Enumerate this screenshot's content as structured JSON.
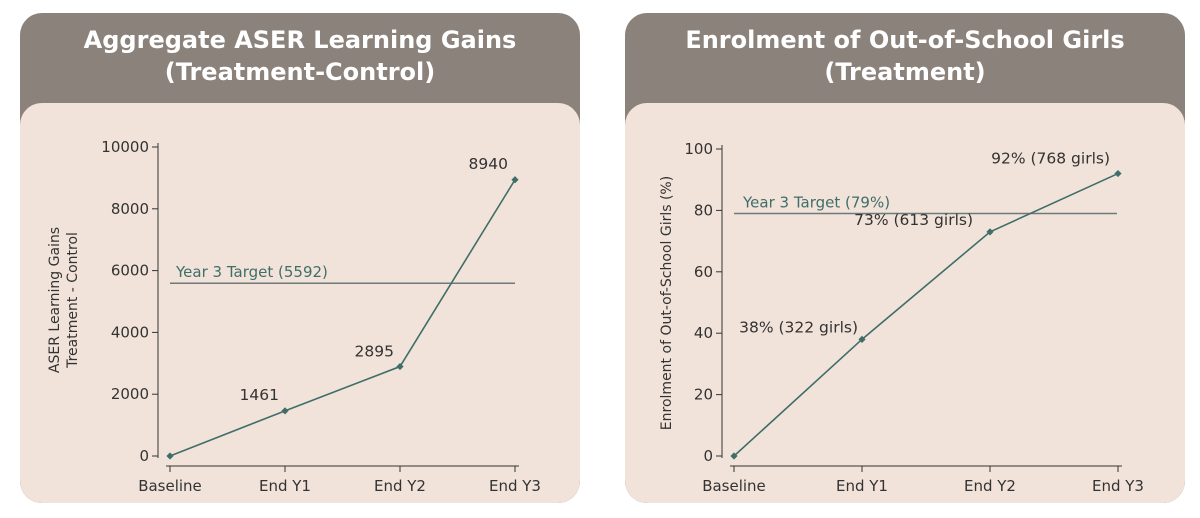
{
  "panels": [
    {
      "title_line1": "Aggregate ASER Learning Gains",
      "title_line2": "(Treatment-Control)"
    },
    {
      "title_line1": "Enrolment of Out-of-School Girls",
      "title_line2": "(Treatment)"
    }
  ],
  "colors": {
    "header_bg": "#8c827c",
    "body_bg": "#f2e3da",
    "series": "#3f6e69",
    "target_line": "#6d7a79"
  },
  "chart_data": [
    {
      "type": "line",
      "title": "Aggregate ASER Learning Gains (Treatment-Control)",
      "categories": [
        "Baseline",
        "End Y1",
        "End Y2",
        "End Y3"
      ],
      "series": [
        {
          "values": [
            0,
            1461,
            2895,
            8940
          ]
        }
      ],
      "data_labels": [
        "",
        "1461",
        "2895",
        "8940"
      ],
      "ylabel_lines": [
        "ASER Learning Gains",
        "Treatment - Control"
      ],
      "ylim": [
        0,
        10000
      ],
      "yticks": [
        0,
        2000,
        4000,
        6000,
        8000,
        10000
      ],
      "target": {
        "value": 5592,
        "label": "Year 3 Target (5592)"
      },
      "grid": false
    },
    {
      "type": "line",
      "title": "Enrolment of Out-of-School Girls (Treatment)",
      "categories": [
        "Baseline",
        "End Y1",
        "End Y2",
        "End Y3"
      ],
      "series": [
        {
          "values": [
            0,
            38,
            73,
            92
          ]
        }
      ],
      "data_labels": [
        "",
        "38% (322 girls)",
        "73% (613 girls)",
        "92% (768 girls)"
      ],
      "ylabel_lines": [
        "Enrolment of Out-of-School Girls (%)"
      ],
      "ylim": [
        0,
        100
      ],
      "yticks": [
        0,
        20,
        40,
        60,
        80,
        100
      ],
      "target": {
        "value": 79,
        "label": "Year 3 Target (79%)"
      },
      "grid": false
    }
  ]
}
